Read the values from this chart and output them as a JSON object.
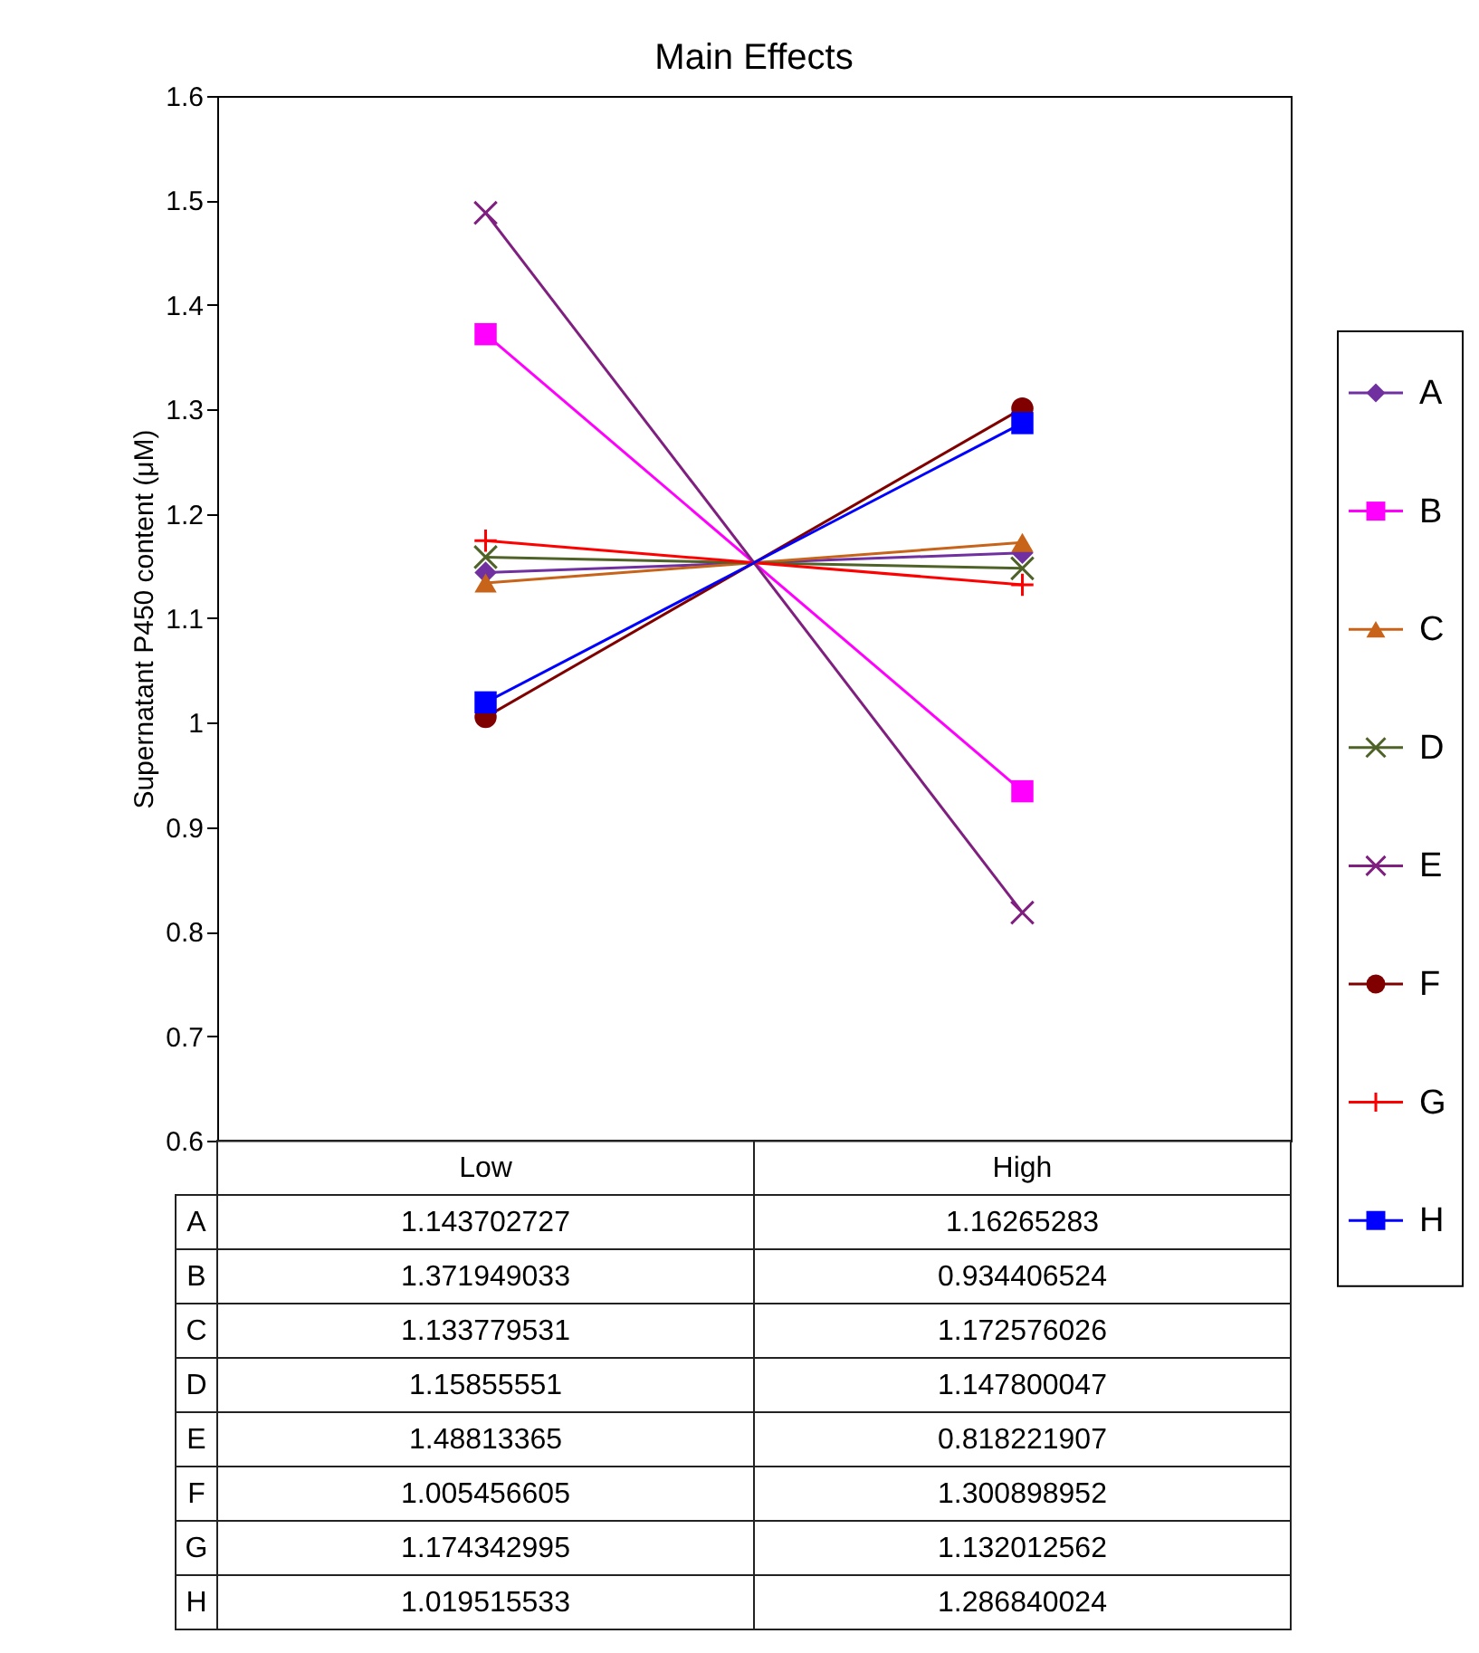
{
  "chart_data": {
    "type": "line",
    "title": "Main Effects",
    "ylabel": "Supernatant P450 content (μM)",
    "categories": [
      "Low",
      "High"
    ],
    "ylim": [
      0.6,
      1.6
    ],
    "yticks": [
      0.6,
      0.7,
      0.8,
      0.9,
      1,
      1.1,
      1.2,
      1.3,
      1.4,
      1.5,
      1.6
    ],
    "grid": false,
    "legend": "right",
    "data_labels": true,
    "series": [
      {
        "name": "A",
        "color": "#7030a0",
        "marker": "diamond",
        "values": [
          1.143702727,
          1.16265283
        ]
      },
      {
        "name": "B",
        "color": "#ff00ff",
        "marker": "square",
        "values": [
          1.371949033,
          0.934406524
        ]
      },
      {
        "name": "C",
        "color": "#c8641a",
        "marker": "triangle",
        "values": [
          1.133779531,
          1.172576026
        ]
      },
      {
        "name": "D",
        "color": "#4f6228",
        "marker": "cross",
        "values": [
          1.15855551,
          1.147800047
        ]
      },
      {
        "name": "E",
        "color": "#7f1f7f",
        "marker": "cross",
        "values": [
          1.48813365,
          0.818221907
        ]
      },
      {
        "name": "F",
        "color": "#800000",
        "marker": "circle",
        "values": [
          1.005456605,
          1.300898952
        ]
      },
      {
        "name": "G",
        "color": "#ff0000",
        "marker": "plus",
        "values": [
          1.174342995,
          1.132012562
        ]
      },
      {
        "name": "H",
        "color": "#0000ff",
        "marker": "square",
        "values": [
          1.019515533,
          1.286840024
        ]
      }
    ]
  }
}
